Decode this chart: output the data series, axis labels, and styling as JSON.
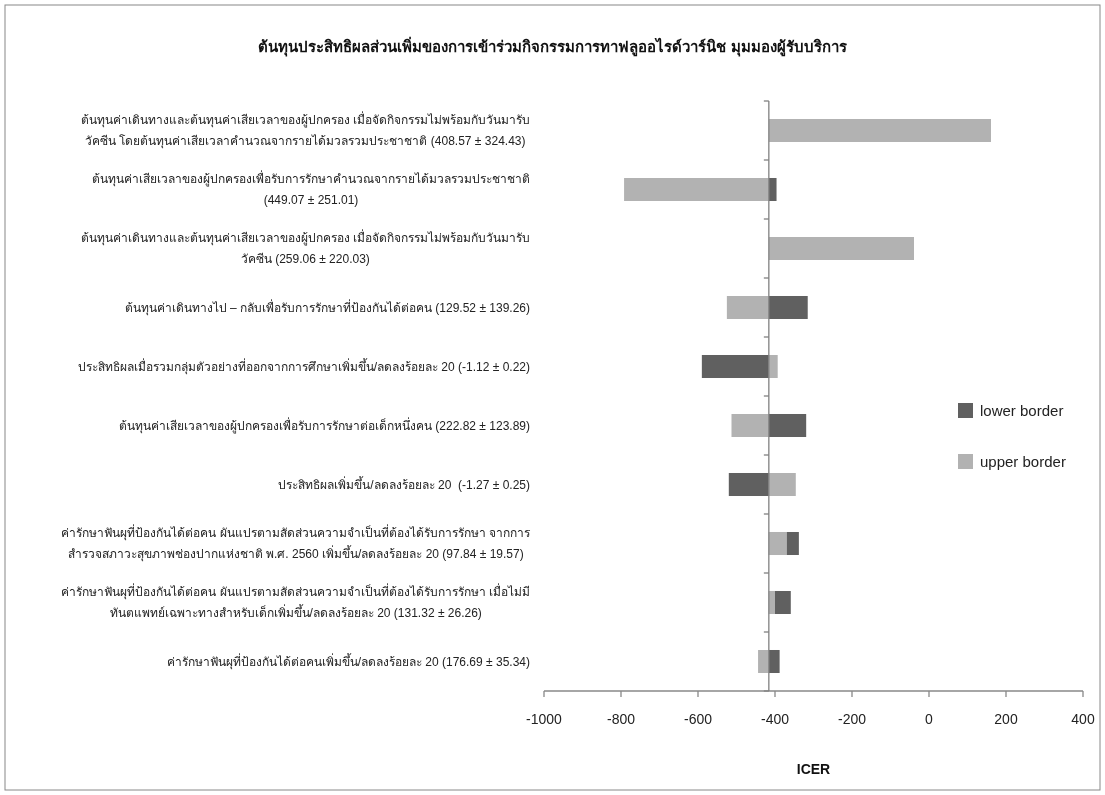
{
  "chart_data": {
    "type": "bar",
    "orientation": "horizontal",
    "title": "ต้นทุนประสิทธิผลส่วนเพิ่มของการเข้าร่วมกิจกรรมการทาฟลูออไรด์วาร์นิช มุมมองผู้รับบริการ",
    "xlabel": "ICER",
    "categories": [
      "ต้นทุนค่าเดินทางและต้นทุนค่าเสียเวลาของผู้ปกครอง เมื่อจัดกิจกรรมไม่พร้อมกับวันมารับ\nวัคซีน โดยต้นทุนค่าเสียเวลาคำนวณจากรายได้มวลรวมประชาชาติ (408.57 ± 324.43)",
      "ต้นทุนค่าเสียเวลาของผู้ปกครองเพื่อรับการรักษาคำนวณจากรายได้มวลรวมประชาชาติ\n(449.07 ± 251.01)",
      "ต้นทุนค่าเดินทางและต้นทุนค่าเสียเวลาของผู้ปกครอง เมื่อจัดกิจกรรมไม่พร้อมกับวันมารับ\nวัคซีน (259.06 ± 220.03)",
      "ต้นทุนค่าเดินทางไป – กลับเพื่อรับการรักษาที่ป้องกันได้ต่อคน (129.52 ± 139.26)",
      "ประสิทธิผลเมื่อรวมกลุ่มตัวอย่างที่ออกจากการศึกษาเพิ่มขึ้น/ลดลงร้อยละ 20 (-1.12 ± 0.22)",
      "ต้นทุนค่าเสียเวลาของผู้ปกครองเพื่อรับการรักษาต่อเด็กหนึ่งคน (222.82 ± 123.89)",
      "ประสิทธิผลเพิ่มขึ้น/ลดลงร้อยละ 20  (-1.27 ± 0.25)",
      "ค่ารักษาฟันผุที่ป้องกันได้ต่อคน ผันแปรตามสัดส่วนความจำเป็นที่ต้องได้รับการรักษา จากการ\nสำรวจสภาวะสุขภาพช่องปากแห่งชาติ พ.ศ. 2560 เพิ่มขึ้น/ลดลงร้อยละ 20 (97.84 ± 19.57)",
      "ค่ารักษาฟันผุที่ป้องกันได้ต่อคน ผันแปรตามสัดส่วนความจำเป็นที่ต้องได้รับการรักษา เมื่อไม่มี\nทันตแพทย์เฉพาะทางสำหรับเด็กเพิ่มขึ้น/ลดลงร้อยละ 20 (131.32 ± 26.26)",
      "ค่ารักษาฟันผุที่ป้องกันได้ต่อคนเพิ่มขึ้น/ลดลงร้อยละ 20 (176.69 ± 35.34)"
    ],
    "series": [
      {
        "name": "lower border",
        "color": "#606060",
        "base": [
          null,
          -416,
          null,
          -416,
          -416,
          -416,
          -416,
          -416,
          -416,
          -416
        ],
        "values": [
          null,
          20,
          null,
          101,
          -174,
          97,
          -104,
          78,
          57,
          28
        ]
      },
      {
        "name": "upper border",
        "color": "#b2b2b2",
        "base": [
          -416,
          -416,
          -416,
          -416,
          -416,
          -416,
          -416,
          -416,
          -416,
          -416
        ],
        "values": [
          577,
          -376,
          377,
          -109,
          23,
          -97,
          70,
          47,
          16,
          -28
        ]
      }
    ],
    "xlim": [
      -1000,
      400
    ],
    "xticks": [
      -1000,
      -800,
      -600,
      -400,
      -200,
      0,
      200,
      400
    ],
    "ref_lines": [
      {
        "axis": "x",
        "value": -416,
        "color": "#808080"
      }
    ],
    "grid": false,
    "legend": "right"
  }
}
